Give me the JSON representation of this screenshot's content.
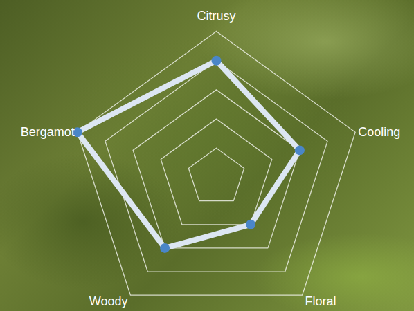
{
  "chart_data": {
    "type": "radar",
    "categories": [
      "Citrusy",
      "Cooling",
      "Floral",
      "Woody",
      "Bergamot"
    ],
    "values": [
      4,
      3,
      2,
      3,
      5
    ],
    "color": "#4a86c8",
    "ylim": [
      0,
      5
    ],
    "yticks": [
      1,
      2,
      3,
      4,
      5
    ],
    "grid": true,
    "tick_labels": false
  }
}
